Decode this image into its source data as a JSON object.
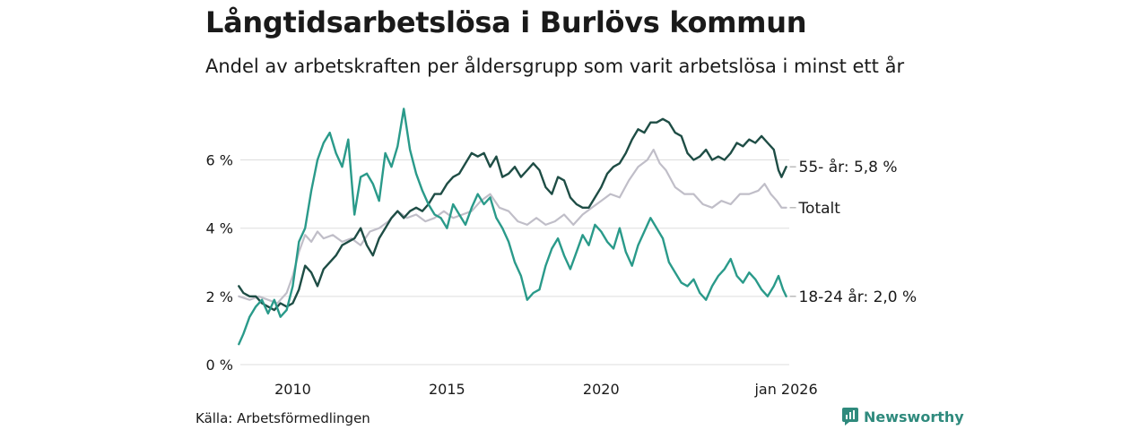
{
  "header": {
    "title": "Långtidsarbetslösa i Burlövs kommun",
    "subtitle": "Andel av arbetskraften per åldersgrupp som varit arbetslösa i minst ett år"
  },
  "footer": {
    "source": "Källa: Arbetsförmedlingen",
    "brand": "Newsworthy"
  },
  "colors": {
    "senior": "#1e4d45",
    "youth": "#2a9a8a",
    "total": "#c0bec8",
    "grid": "#dddddd",
    "brand": "#2f8a7d"
  },
  "chart_data": {
    "type": "line",
    "title": "Långtidsarbetslösa i Burlövs kommun",
    "subtitle": "Andel av arbetskraften per åldersgrupp som varit arbetslösa i minst ett år",
    "x_unit": "year",
    "xlim": [
      2008.3,
      2026.1
    ],
    "ylim": [
      0,
      7.8
    ],
    "yticks": [
      0,
      2,
      4,
      6
    ],
    "ytick_labels": [
      "0 %",
      "2 %",
      "4 %",
      "6 %"
    ],
    "xticks": [
      2010,
      2015,
      2020,
      2026.0
    ],
    "xtick_labels": [
      "2010",
      "2015",
      "2020",
      "jan 2026"
    ],
    "grid": "horizontal",
    "series": [
      {
        "name": "Totalt",
        "label": "Totalt",
        "color_key": "total",
        "points": [
          [
            2008.25,
            2.0
          ],
          [
            2008.6,
            1.9
          ],
          [
            2008.9,
            2.0
          ],
          [
            2009.2,
            1.9
          ],
          [
            2009.5,
            1.8
          ],
          [
            2009.8,
            2.1
          ],
          [
            2010.0,
            2.6
          ],
          [
            2010.2,
            3.3
          ],
          [
            2010.4,
            3.8
          ],
          [
            2010.6,
            3.6
          ],
          [
            2010.8,
            3.9
          ],
          [
            2011.0,
            3.7
          ],
          [
            2011.3,
            3.8
          ],
          [
            2011.6,
            3.6
          ],
          [
            2011.9,
            3.7
          ],
          [
            2012.2,
            3.5
          ],
          [
            2012.5,
            3.9
          ],
          [
            2012.8,
            4.0
          ],
          [
            2013.1,
            4.2
          ],
          [
            2013.4,
            4.5
          ],
          [
            2013.7,
            4.3
          ],
          [
            2014.0,
            4.4
          ],
          [
            2014.3,
            4.2
          ],
          [
            2014.6,
            4.3
          ],
          [
            2014.9,
            4.5
          ],
          [
            2015.2,
            4.3
          ],
          [
            2015.5,
            4.4
          ],
          [
            2015.8,
            4.5
          ],
          [
            2016.1,
            4.8
          ],
          [
            2016.4,
            5.0
          ],
          [
            2016.7,
            4.6
          ],
          [
            2017.0,
            4.5
          ],
          [
            2017.3,
            4.2
          ],
          [
            2017.6,
            4.1
          ],
          [
            2017.9,
            4.3
          ],
          [
            2018.2,
            4.1
          ],
          [
            2018.5,
            4.2
          ],
          [
            2018.8,
            4.4
          ],
          [
            2019.1,
            4.1
          ],
          [
            2019.4,
            4.4
          ],
          [
            2019.7,
            4.6
          ],
          [
            2020.0,
            4.8
          ],
          [
            2020.3,
            5.0
          ],
          [
            2020.6,
            4.9
          ],
          [
            2020.9,
            5.4
          ],
          [
            2021.2,
            5.8
          ],
          [
            2021.5,
            6.0
          ],
          [
            2021.7,
            6.3
          ],
          [
            2021.9,
            5.9
          ],
          [
            2022.1,
            5.7
          ],
          [
            2022.4,
            5.2
          ],
          [
            2022.7,
            5.0
          ],
          [
            2023.0,
            5.0
          ],
          [
            2023.3,
            4.7
          ],
          [
            2023.6,
            4.6
          ],
          [
            2023.9,
            4.8
          ],
          [
            2024.2,
            4.7
          ],
          [
            2024.5,
            5.0
          ],
          [
            2024.8,
            5.0
          ],
          [
            2025.1,
            5.1
          ],
          [
            2025.3,
            5.3
          ],
          [
            2025.5,
            5.0
          ],
          [
            2025.7,
            4.8
          ],
          [
            2025.85,
            4.6
          ],
          [
            2026.0,
            4.6
          ]
        ]
      },
      {
        "name": "55- år",
        "label": "55- år: 5,8 %",
        "color_key": "senior",
        "points": [
          [
            2008.25,
            2.3
          ],
          [
            2008.4,
            2.1
          ],
          [
            2008.6,
            2.0
          ],
          [
            2008.8,
            2.0
          ],
          [
            2009.0,
            1.8
          ],
          [
            2009.2,
            1.7
          ],
          [
            2009.4,
            1.6
          ],
          [
            2009.6,
            1.8
          ],
          [
            2009.8,
            1.7
          ],
          [
            2010.0,
            1.8
          ],
          [
            2010.2,
            2.2
          ],
          [
            2010.4,
            2.9
          ],
          [
            2010.6,
            2.7
          ],
          [
            2010.8,
            2.3
          ],
          [
            2011.0,
            2.8
          ],
          [
            2011.2,
            3.0
          ],
          [
            2011.4,
            3.2
          ],
          [
            2011.6,
            3.5
          ],
          [
            2011.8,
            3.6
          ],
          [
            2012.0,
            3.7
          ],
          [
            2012.2,
            4.0
          ],
          [
            2012.4,
            3.5
          ],
          [
            2012.6,
            3.2
          ],
          [
            2012.8,
            3.7
          ],
          [
            2013.0,
            4.0
          ],
          [
            2013.2,
            4.3
          ],
          [
            2013.4,
            4.5
          ],
          [
            2013.6,
            4.3
          ],
          [
            2013.8,
            4.5
          ],
          [
            2014.0,
            4.6
          ],
          [
            2014.2,
            4.5
          ],
          [
            2014.4,
            4.7
          ],
          [
            2014.6,
            5.0
          ],
          [
            2014.8,
            5.0
          ],
          [
            2015.0,
            5.3
          ],
          [
            2015.2,
            5.5
          ],
          [
            2015.4,
            5.6
          ],
          [
            2015.6,
            5.9
          ],
          [
            2015.8,
            6.2
          ],
          [
            2016.0,
            6.1
          ],
          [
            2016.2,
            6.2
          ],
          [
            2016.4,
            5.8
          ],
          [
            2016.6,
            6.1
          ],
          [
            2016.8,
            5.5
          ],
          [
            2017.0,
            5.6
          ],
          [
            2017.2,
            5.8
          ],
          [
            2017.4,
            5.5
          ],
          [
            2017.6,
            5.7
          ],
          [
            2017.8,
            5.9
          ],
          [
            2018.0,
            5.7
          ],
          [
            2018.2,
            5.2
          ],
          [
            2018.4,
            5.0
          ],
          [
            2018.6,
            5.5
          ],
          [
            2018.8,
            5.4
          ],
          [
            2019.0,
            4.9
          ],
          [
            2019.2,
            4.7
          ],
          [
            2019.4,
            4.6
          ],
          [
            2019.6,
            4.6
          ],
          [
            2019.8,
            4.9
          ],
          [
            2020.0,
            5.2
          ],
          [
            2020.2,
            5.6
          ],
          [
            2020.4,
            5.8
          ],
          [
            2020.6,
            5.9
          ],
          [
            2020.8,
            6.2
          ],
          [
            2021.0,
            6.6
          ],
          [
            2021.2,
            6.9
          ],
          [
            2021.4,
            6.8
          ],
          [
            2021.6,
            7.1
          ],
          [
            2021.8,
            7.1
          ],
          [
            2022.0,
            7.2
          ],
          [
            2022.2,
            7.1
          ],
          [
            2022.4,
            6.8
          ],
          [
            2022.6,
            6.7
          ],
          [
            2022.8,
            6.2
          ],
          [
            2023.0,
            6.0
          ],
          [
            2023.2,
            6.1
          ],
          [
            2023.4,
            6.3
          ],
          [
            2023.6,
            6.0
          ],
          [
            2023.8,
            6.1
          ],
          [
            2024.0,
            6.0
          ],
          [
            2024.2,
            6.2
          ],
          [
            2024.4,
            6.5
          ],
          [
            2024.6,
            6.4
          ],
          [
            2024.8,
            6.6
          ],
          [
            2025.0,
            6.5
          ],
          [
            2025.2,
            6.7
          ],
          [
            2025.4,
            6.5
          ],
          [
            2025.6,
            6.3
          ],
          [
            2025.75,
            5.7
          ],
          [
            2025.85,
            5.5
          ],
          [
            2026.0,
            5.8
          ]
        ]
      },
      {
        "name": "18-24 år",
        "label": "18-24 år: 2,0 %",
        "color_key": "youth",
        "points": [
          [
            2008.25,
            0.6
          ],
          [
            2008.4,
            0.9
          ],
          [
            2008.6,
            1.4
          ],
          [
            2008.8,
            1.7
          ],
          [
            2009.0,
            1.9
          ],
          [
            2009.2,
            1.5
          ],
          [
            2009.4,
            1.9
          ],
          [
            2009.6,
            1.4
          ],
          [
            2009.8,
            1.6
          ],
          [
            2010.0,
            2.3
          ],
          [
            2010.2,
            3.6
          ],
          [
            2010.4,
            4.0
          ],
          [
            2010.6,
            5.1
          ],
          [
            2010.8,
            6.0
          ],
          [
            2011.0,
            6.5
          ],
          [
            2011.2,
            6.8
          ],
          [
            2011.4,
            6.2
          ],
          [
            2011.6,
            5.8
          ],
          [
            2011.8,
            6.6
          ],
          [
            2012.0,
            4.4
          ],
          [
            2012.2,
            5.5
          ],
          [
            2012.4,
            5.6
          ],
          [
            2012.6,
            5.3
          ],
          [
            2012.8,
            4.8
          ],
          [
            2013.0,
            6.2
          ],
          [
            2013.2,
            5.8
          ],
          [
            2013.4,
            6.4
          ],
          [
            2013.6,
            7.5
          ],
          [
            2013.8,
            6.3
          ],
          [
            2014.0,
            5.6
          ],
          [
            2014.2,
            5.1
          ],
          [
            2014.4,
            4.7
          ],
          [
            2014.6,
            4.4
          ],
          [
            2014.8,
            4.3
          ],
          [
            2015.0,
            4.0
          ],
          [
            2015.2,
            4.7
          ],
          [
            2015.4,
            4.4
          ],
          [
            2015.6,
            4.1
          ],
          [
            2015.8,
            4.6
          ],
          [
            2016.0,
            5.0
          ],
          [
            2016.2,
            4.7
          ],
          [
            2016.4,
            4.9
          ],
          [
            2016.6,
            4.3
          ],
          [
            2016.8,
            4.0
          ],
          [
            2017.0,
            3.6
          ],
          [
            2017.2,
            3.0
          ],
          [
            2017.4,
            2.6
          ],
          [
            2017.6,
            1.9
          ],
          [
            2017.8,
            2.1
          ],
          [
            2018.0,
            2.2
          ],
          [
            2018.2,
            2.9
          ],
          [
            2018.4,
            3.4
          ],
          [
            2018.6,
            3.7
          ],
          [
            2018.8,
            3.2
          ],
          [
            2019.0,
            2.8
          ],
          [
            2019.2,
            3.3
          ],
          [
            2019.4,
            3.8
          ],
          [
            2019.6,
            3.5
          ],
          [
            2019.8,
            4.1
          ],
          [
            2020.0,
            3.9
          ],
          [
            2020.2,
            3.6
          ],
          [
            2020.4,
            3.4
          ],
          [
            2020.6,
            4.0
          ],
          [
            2020.8,
            3.3
          ],
          [
            2021.0,
            2.9
          ],
          [
            2021.2,
            3.5
          ],
          [
            2021.4,
            3.9
          ],
          [
            2021.6,
            4.3
          ],
          [
            2021.8,
            4.0
          ],
          [
            2022.0,
            3.7
          ],
          [
            2022.2,
            3.0
          ],
          [
            2022.4,
            2.7
          ],
          [
            2022.6,
            2.4
          ],
          [
            2022.8,
            2.3
          ],
          [
            2023.0,
            2.5
          ],
          [
            2023.2,
            2.1
          ],
          [
            2023.4,
            1.9
          ],
          [
            2023.6,
            2.3
          ],
          [
            2023.8,
            2.6
          ],
          [
            2024.0,
            2.8
          ],
          [
            2024.2,
            3.1
          ],
          [
            2024.4,
            2.6
          ],
          [
            2024.6,
            2.4
          ],
          [
            2024.8,
            2.7
          ],
          [
            2025.0,
            2.5
          ],
          [
            2025.2,
            2.2
          ],
          [
            2025.4,
            2.0
          ],
          [
            2025.6,
            2.3
          ],
          [
            2025.75,
            2.6
          ],
          [
            2025.9,
            2.2
          ],
          [
            2026.0,
            2.0
          ]
        ]
      }
    ]
  }
}
